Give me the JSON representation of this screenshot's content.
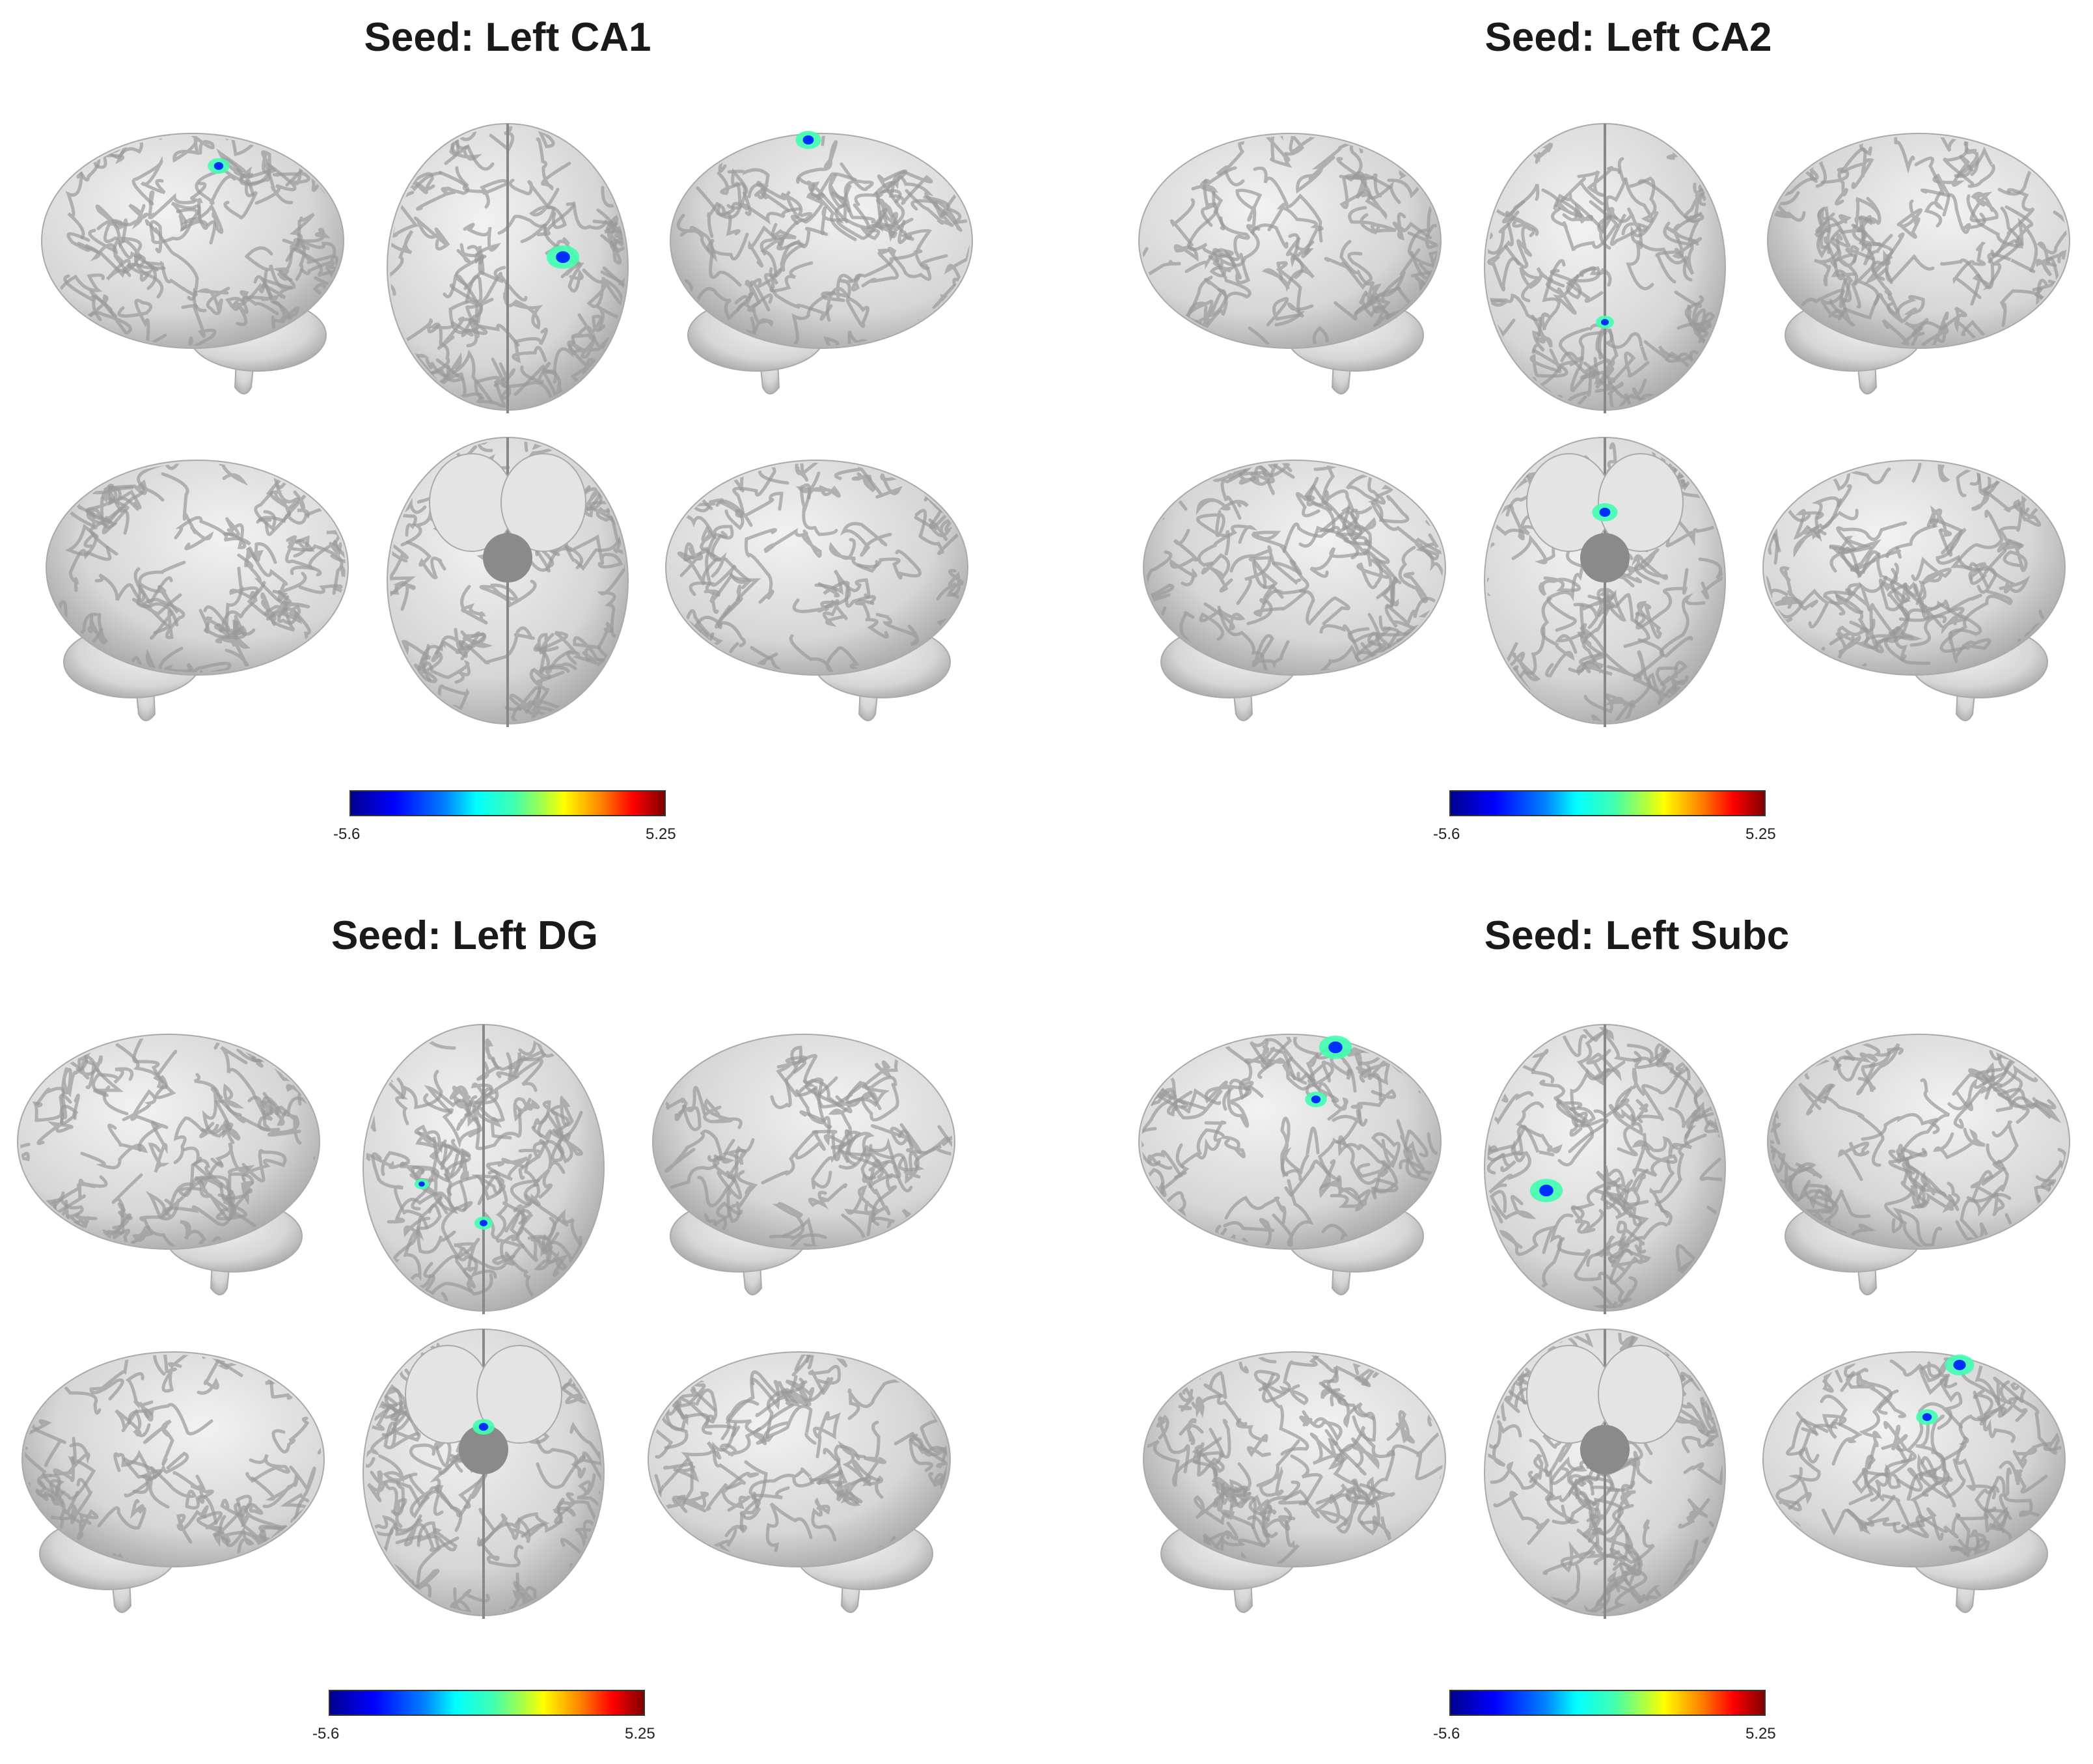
{
  "panels": [
    {
      "title": "Seed: Left CA1",
      "colorbar": {
        "min": "-5.6",
        "max": "5.25",
        "colormap": "jet"
      }
    },
    {
      "title": "Seed: Left CA2",
      "colorbar": {
        "min": "-5.6",
        "max": "5.25",
        "colormap": "jet"
      }
    },
    {
      "title": "Seed: Left DG",
      "colorbar": {
        "min": "-5.6",
        "max": "5.25",
        "colormap": "jet"
      }
    },
    {
      "title": "Seed: Left Subc",
      "colorbar": {
        "min": "-5.6",
        "max": "5.25",
        "colormap": "jet"
      }
    }
  ],
  "colors": {
    "brain_surface": "#d9d9d9",
    "background": "#ffffff"
  }
}
